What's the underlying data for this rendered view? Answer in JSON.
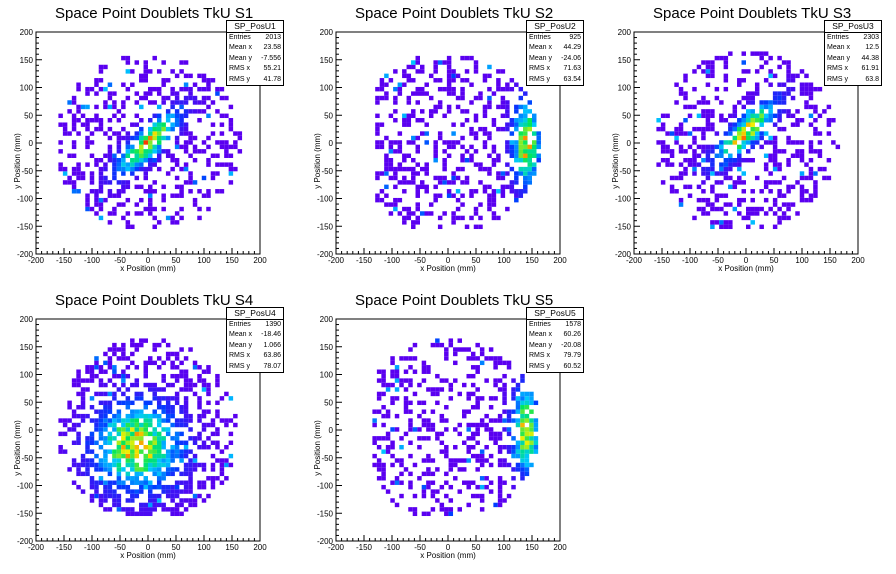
{
  "colors": {
    "background": "#ffffff",
    "frame": "#000000",
    "empty_palette_low": "#5a00f0",
    "palette_high": "#ff0000"
  },
  "axis_common": {
    "xlabel": "x Position (mm)",
    "ylabel": "y Position (mm)",
    "xticks": [
      -200,
      -150,
      -100,
      -50,
      0,
      50,
      100,
      150,
      200
    ],
    "yticks": [
      -200,
      -150,
      -100,
      -50,
      0,
      50,
      100,
      150,
      200
    ],
    "xlim": [
      -200,
      200
    ],
    "ylim": [
      -200,
      200
    ]
  },
  "chart_data": [
    {
      "type": "heatmap",
      "title": "Space Point Doublets TkU S1",
      "xlabel": "x Position (mm)",
      "ylabel": "y Position (mm)",
      "xlim": [
        -200,
        200
      ],
      "ylim": [
        -200,
        200
      ],
      "stats": {
        "name": "SP_PosU1",
        "rows": [
          [
            "Entries",
            "2013"
          ],
          [
            "Mean x",
            "23.58"
          ],
          [
            "Mean y",
            "-7.556"
          ],
          [
            "RMS x",
            "55.21"
          ],
          [
            "RMS y",
            "41.78"
          ]
        ]
      },
      "occupied_region": {
        "x": [
          -160,
          170
        ],
        "y": [
          -155,
          155
        ]
      },
      "hotspot": {
        "x": 0,
        "y": 0,
        "direction": "diagonal-up-right"
      }
    },
    {
      "type": "heatmap",
      "title": "Space Point Doublets TkU S2",
      "xlabel": "x Position (mm)",
      "ylabel": "y Position (mm)",
      "xlim": [
        -200,
        200
      ],
      "ylim": [
        -200,
        200
      ],
      "stats": {
        "name": "SP_PosU2",
        "rows": [
          [
            "Entries",
            "925"
          ],
          [
            "Mean x",
            "44.29"
          ],
          [
            "Mean y",
            "-24.06"
          ],
          [
            "RMS x",
            "71.63"
          ],
          [
            "RMS y",
            "63.54"
          ]
        ]
      },
      "occupied_region": {
        "x": [
          -130,
          165
        ],
        "y": [
          -155,
          155
        ]
      },
      "hotspot": {
        "x": 140,
        "y": 0,
        "direction": "vertical"
      }
    },
    {
      "type": "heatmap",
      "title": "Space Point Doublets TkU S3",
      "xlabel": "x Position (mm)",
      "ylabel": "y Position (mm)",
      "xlim": [
        -200,
        200
      ],
      "ylim": [
        -200,
        200
      ],
      "stats": {
        "name": "SP_PosU3",
        "rows": [
          [
            "Entries",
            "2303"
          ],
          [
            "Mean x",
            "12.5"
          ],
          [
            "Mean y",
            "44.38"
          ],
          [
            "RMS x",
            "61.91"
          ],
          [
            "RMS y",
            "63.8"
          ]
        ]
      },
      "occupied_region": {
        "x": [
          -160,
          165
        ],
        "y": [
          -155,
          160
        ]
      },
      "hotspot": {
        "x": 0,
        "y": 20,
        "direction": "diagonal-up-right"
      }
    },
    {
      "type": "heatmap",
      "title": "Space Point Doublets TkU S4",
      "xlabel": "x Position (mm)",
      "ylabel": "y Position (mm)",
      "xlim": [
        -200,
        200
      ],
      "ylim": [
        -200,
        200
      ],
      "stats": {
        "name": "SP_PosU4",
        "rows": [
          [
            "Entries",
            "1390"
          ],
          [
            "Mean x",
            "-18.46"
          ],
          [
            "Mean y",
            "1.066"
          ],
          [
            "RMS x",
            "63.86"
          ],
          [
            "RMS y",
            "78.07"
          ]
        ]
      },
      "occupied_region": {
        "x": [
          -160,
          165
        ],
        "y": [
          -155,
          160
        ]
      },
      "hotspot": {
        "x": -20,
        "y": -30,
        "direction": "none"
      }
    },
    {
      "type": "heatmap",
      "title": "Space Point Doublets TkU S5",
      "xlabel": "x Position (mm)",
      "ylabel": "y Position (mm)",
      "xlim": [
        -200,
        200
      ],
      "ylim": [
        -200,
        200
      ],
      "stats": {
        "name": "SP_PosU5",
        "rows": [
          [
            "Entries",
            "1578"
          ],
          [
            "Mean x",
            "60.26"
          ],
          [
            "Mean y",
            "-20.08"
          ],
          [
            "RMS x",
            "79.79"
          ],
          [
            "RMS y",
            "60.52"
          ]
        ]
      },
      "occupied_region": {
        "x": [
          -135,
          165
        ],
        "y": [
          -155,
          160
        ]
      },
      "hotspot": {
        "x": 140,
        "y": 0,
        "direction": "vertical"
      }
    }
  ]
}
